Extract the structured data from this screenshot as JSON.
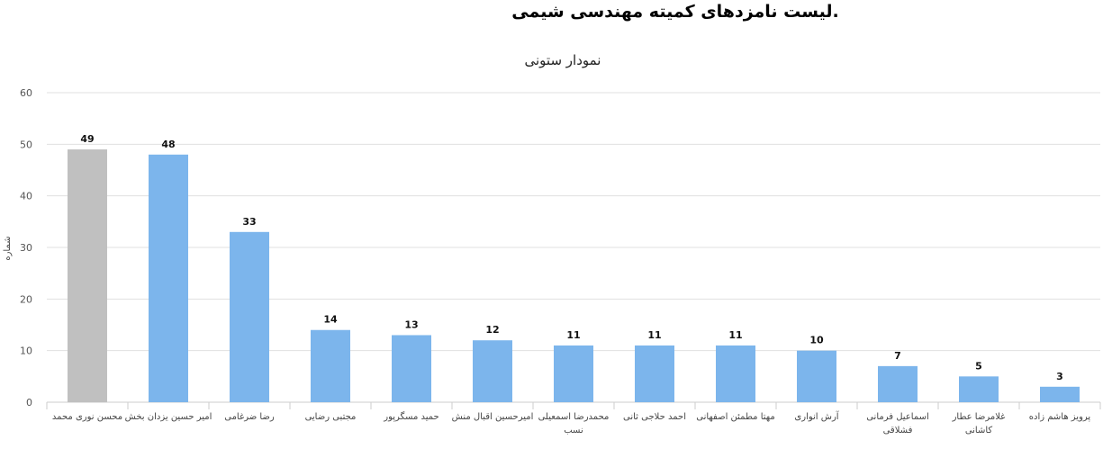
{
  "header": {
    "title": ".لیست نامزدهای کمیته مهندسی شیمی"
  },
  "chart_data": {
    "type": "bar",
    "title": "نمودار ستونی",
    "ylabel": "شماره",
    "ylim": [
      0,
      60
    ],
    "yticks": [
      0,
      10,
      20,
      30,
      40,
      50,
      60
    ],
    "grid": true,
    "categories": [
      [
        "محسن نوری محمد"
      ],
      [
        "امیر حسین یزدان بخش"
      ],
      [
        "رضا ضرغامی"
      ],
      [
        "مجتبی رضایی"
      ],
      [
        "حمید مسگرپور"
      ],
      [
        "امیرحسین اقبال منش"
      ],
      [
        "محمدرضا اسمعیلی",
        "نسب"
      ],
      [
        "احمد حلاجی ثانی"
      ],
      [
        "مهتا مطمئن اصفهانی"
      ],
      [
        "آرش انواری"
      ],
      [
        "اسماعیل فرمانی",
        "فشلاقی"
      ],
      [
        "غلامرضا عطار",
        "کاشانی"
      ],
      [
        "پرویز هاشم زاده"
      ]
    ],
    "values": [
      49,
      48,
      33,
      14,
      13,
      12,
      11,
      11,
      11,
      10,
      7,
      5,
      3
    ],
    "colors": {
      "highlight": "#c0c0c0",
      "bar": "#7cb5ec",
      "grid": "#e0e0e0"
    },
    "highlight_index": 0
  }
}
